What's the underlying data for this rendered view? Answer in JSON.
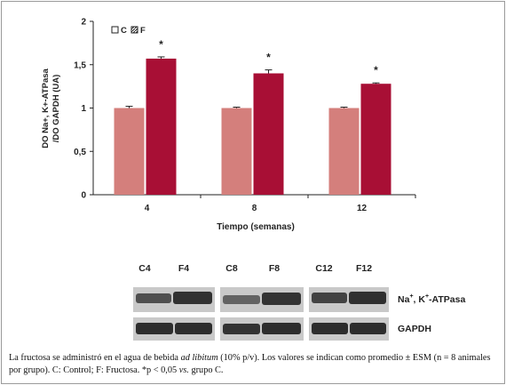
{
  "chart_data": {
    "type": "bar",
    "categories": [
      "4",
      "8",
      "12"
    ],
    "series": [
      {
        "name": "C",
        "values": [
          1.0,
          1.0,
          1.0
        ],
        "errors": [
          0.02,
          0.01,
          0.01
        ],
        "color": "#d47f7c"
      },
      {
        "name": "F",
        "values": [
          1.57,
          1.4,
          1.28
        ],
        "errors": [
          0.02,
          0.04,
          0.01
        ],
        "color": "#a80f35"
      }
    ],
    "significance": [
      "*",
      "*",
      "*"
    ],
    "xlabel": "Tiempo (semanas)",
    "ylabel_line1": "DO Na+, K+-ATPasa",
    "ylabel_line2": "/DO GAPDH (UA)",
    "ylim": [
      0,
      2
    ],
    "yticks": [
      "0",
      "0,5",
      "1",
      "1,5",
      "2"
    ],
    "legend_position": "top-left",
    "grid": false
  },
  "blot": {
    "lane_labels": [
      "C4",
      "F4",
      "C8",
      "F8",
      "C12",
      "F12"
    ],
    "protein_label_main": "Na",
    "protein_label_sup1": "+",
    "protein_label_mid": ", K",
    "protein_label_sup2": "+",
    "protein_label_tail": "-ATPasa",
    "loading_label": "GAPDH"
  },
  "caption": {
    "part1": "La fructosa se administró en el agua de bebida ",
    "part1_italic": "ad libitum",
    "part2": " (10% p/v). Los valores se indican como promedio ± ESM (n = 8 animales por grupo). C: Control; F: Fructosa. *p < 0,05 ",
    "part2_italic": "vs.",
    "part3": " grupo C."
  }
}
